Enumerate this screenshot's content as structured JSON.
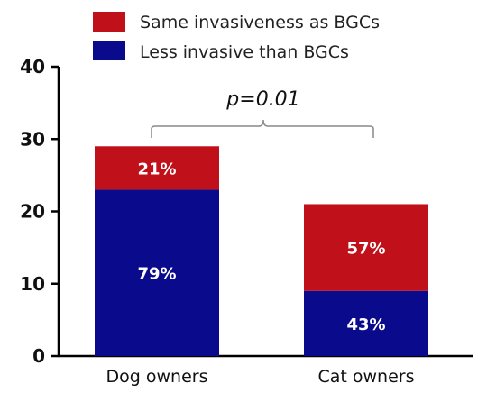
{
  "chart_data": {
    "type": "bar",
    "stacked": true,
    "categories": [
      "Dog owners",
      "Cat owners"
    ],
    "series": [
      {
        "name": "Less invasive than BGCs",
        "color": "#0a0a8c",
        "values": [
          23,
          9
        ],
        "labels": [
          "79%",
          "43%"
        ]
      },
      {
        "name": "Same invasiveness as BGCs",
        "color": "#c0101a",
        "values": [
          6,
          12
        ],
        "labels": [
          "21%",
          "57%"
        ]
      }
    ],
    "ylim": [
      0,
      40
    ],
    "yticks": [
      0,
      10,
      20,
      30,
      40
    ],
    "legend_position": "top",
    "annotation": "p=0.01",
    "grid": false
  }
}
